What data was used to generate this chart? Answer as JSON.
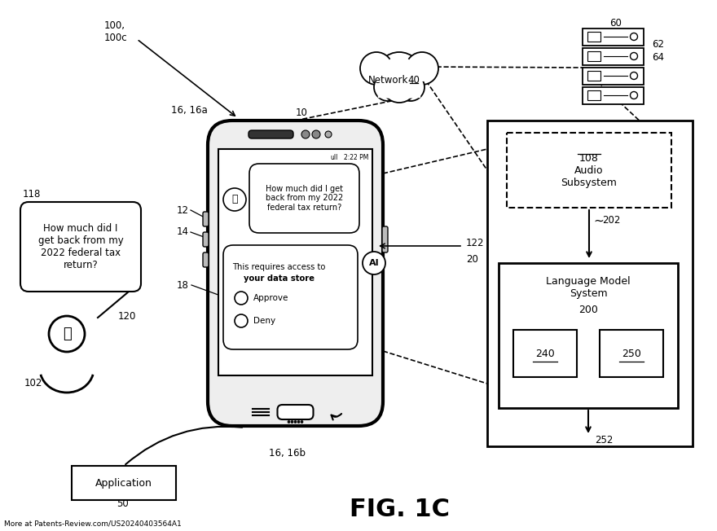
{
  "bg_color": "#ffffff",
  "lc": "#000000",
  "fig_title": "FIG. 1C",
  "watermark": "More at Patents-Review.com/US20240403564A1",
  "speech_bubble_text": "How much did I\nget back from my\n2022 federal tax\nreturn?",
  "query_bubble_text": "How much did I get\nback from my 2022\nfederal tax return?",
  "response_title": "This requires access to",
  "response_title2": "your data store",
  "approve_text": "Approve",
  "deny_text": "Deny",
  "audio_text": "Audio\nSubsystem",
  "audio_ref": "108",
  "lm_text": "Language Model\nSystem",
  "lm_ref": "200",
  "app_text": "Application",
  "status_bar": "2:22 PM",
  "ref_100": "100,\n100c",
  "ref_10": "10",
  "ref_16_16a": "16, 16a",
  "ref_16_16b": "16, 16b",
  "ref_12": "12",
  "ref_14": "14",
  "ref_18": "18",
  "ref_20": "20",
  "ref_122": "122",
  "ref_102": "102",
  "ref_118": "118",
  "ref_120": "120",
  "ref_60": "60",
  "ref_62": "62",
  "ref_64": "64",
  "ref_202": "202",
  "ref_240": "240",
  "ref_250": "250",
  "ref_252": "252",
  "ref_50": "50",
  "network_text": "Network",
  "network_ref": "40"
}
